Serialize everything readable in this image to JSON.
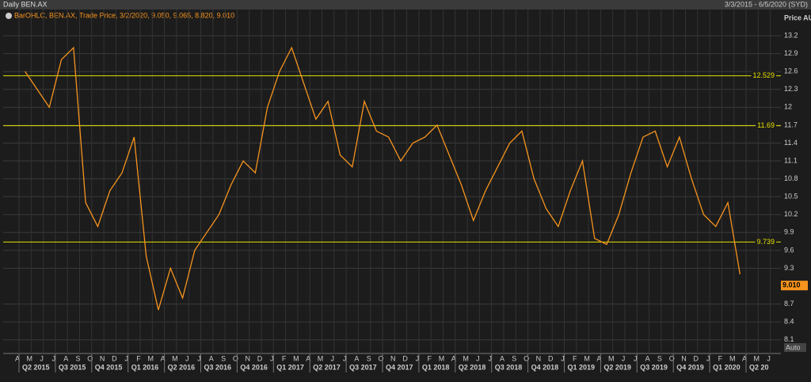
{
  "header": {
    "title": "Daily BEN.AX",
    "range": "3/3/2015 - 6/5/2020 (SYD)",
    "auto": "Auto"
  },
  "chart_data": {
    "type": "line",
    "legend": "BarOHLC, BEN.AX, Trade Price, 3/2/2020, 9.050, 9.065, 8.820, 9.010",
    "y_label": "Price AUD",
    "categories": [
      "A",
      "M",
      "J",
      "J",
      "A",
      "S",
      "O",
      "N",
      "D",
      "J",
      "F",
      "M",
      "A",
      "M",
      "J",
      "J",
      "A",
      "S",
      "O",
      "N",
      "D",
      "J",
      "F",
      "M",
      "A",
      "M",
      "J",
      "J",
      "A",
      "S",
      "O",
      "N",
      "D",
      "J",
      "F",
      "M",
      "A",
      "M",
      "J",
      "J",
      "A",
      "S",
      "O",
      "N",
      "D",
      "J",
      "F",
      "M",
      "A",
      "M",
      "J",
      "J",
      "A",
      "S",
      "O",
      "N",
      "D",
      "J",
      "F",
      "M",
      "A",
      "M",
      "J"
    ],
    "quarters": [
      "Q2 2015",
      "Q3 2015",
      "Q4 2015",
      "Q1 2016",
      "Q2 2016",
      "Q3 2016",
      "Q4 2016",
      "Q1 2017",
      "Q2 2017",
      "Q3 2017",
      "Q4 2017",
      "Q1 2018",
      "Q2 2018",
      "Q3 2018",
      "Q4 2018",
      "Q1 2019",
      "Q2 2019",
      "Q3 2019",
      "Q4 2019",
      "Q1 2020",
      "Q2 20"
    ],
    "series": [
      {
        "name": "BEN.AX",
        "color": "#f7941d",
        "values": [
          12.6,
          12.3,
          12.0,
          12.8,
          13.0,
          10.4,
          10.0,
          10.6,
          10.9,
          11.5,
          9.5,
          8.6,
          9.3,
          8.8,
          9.6,
          9.9,
          10.2,
          10.7,
          11.1,
          10.9,
          12.0,
          12.6,
          13.0,
          12.4,
          11.8,
          12.1,
          11.2,
          11.0,
          12.1,
          11.6,
          11.5,
          11.1,
          11.4,
          11.5,
          11.7,
          11.2,
          10.7,
          10.1,
          10.6,
          11.0,
          11.4,
          11.6,
          10.8,
          10.3,
          10.0,
          10.6,
          11.1,
          9.8,
          9.7,
          10.2,
          10.9,
          11.5,
          11.6,
          11.0,
          11.5,
          10.8,
          10.2,
          10.0,
          10.4,
          9.2,
          null,
          null,
          null
        ]
      }
    ],
    "levels": [
      12.529,
      11.69,
      9.739
    ],
    "level_color": "#e6e000",
    "last_price": {
      "value": 9.01,
      "label": "9.010"
    },
    "ylim": [
      7.87,
      13.64
    ],
    "yticks": [
      8.1,
      8.4,
      8.7,
      9.3,
      9.6,
      9.9,
      10.2,
      10.5,
      10.8,
      11.1,
      11.4,
      11.7,
      12,
      12.3,
      12.6,
      12.9,
      13.2
    ],
    "grid": true
  }
}
